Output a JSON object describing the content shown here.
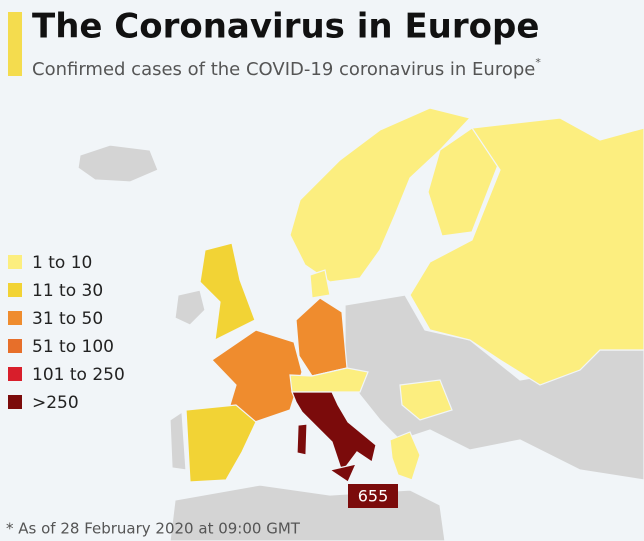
{
  "header": {
    "title": "The Coronavirus in Europe",
    "subtitle": "Confirmed cases of the COVID-19 coronavirus in Europe",
    "subtitle_mark": "*"
  },
  "legend": {
    "items": [
      {
        "label": "1 to 10",
        "color": "#fcee7f"
      },
      {
        "label": "11 to 30",
        "color": "#f2d335"
      },
      {
        "label": "31 to 50",
        "color": "#ef8c2e"
      },
      {
        "label": "51 to 100",
        "color": "#e76f2a"
      },
      {
        "label": "101 to 250",
        "color": "#d81e2b"
      },
      {
        "label": ">250",
        "color": "#7b0b0b"
      }
    ]
  },
  "map": {
    "annotations": [
      {
        "label": "655"
      }
    ]
  },
  "footnote": "* As of 28 February 2020 at 09:00 GMT"
}
